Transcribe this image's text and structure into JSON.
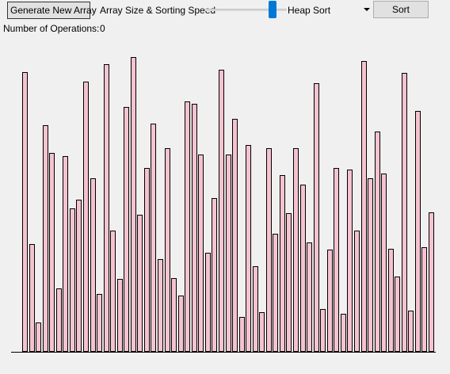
{
  "controls": {
    "generate_label": "Generate New Array",
    "speed_label": "Array Size & Sorting Speed",
    "speed_level": 0.82,
    "algorithm": "Heap Sort",
    "sort_label": "Sort",
    "ops_label": "Number of Operations:",
    "ops_value": "0"
  },
  "colors": {
    "bar_fill": "#f5c3d0",
    "bar_border": "#000000",
    "slider_thumb": "#0078d7",
    "background": "#f0f0f0"
  },
  "icons": {
    "dropdown": "chevron-down-icon"
  },
  "array": {
    "max": 374,
    "values": [
      355,
      137,
      37,
      288,
      252,
      80,
      248,
      182,
      193,
      343,
      220,
      73,
      365,
      154,
      92,
      311,
      374,
      174,
      233,
      290,
      118,
      258,
      94,
      71,
      318,
      315,
      250,
      126,
      195,
      358,
      250,
      296,
      44,
      262,
      109,
      50,
      258,
      150,
      224,
      176,
      258,
      212,
      139,
      341,
      54,
      130,
      233,
      48,
      231,
      154,
      369,
      220,
      279,
      226,
      131,
      96,
      354,
      52,
      306,
      133,
      177
    ]
  }
}
